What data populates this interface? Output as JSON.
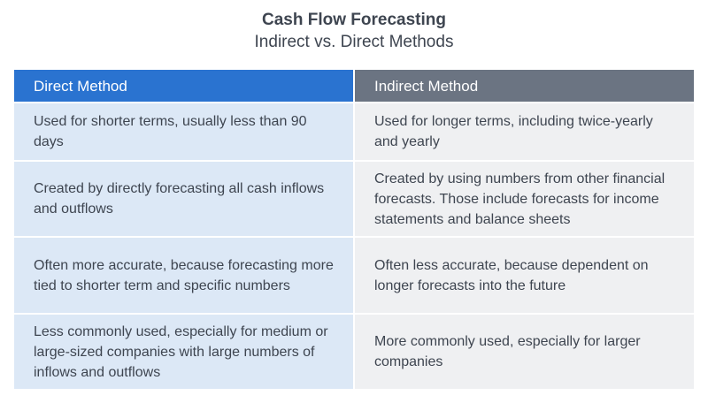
{
  "title": "Cash Flow Forecasting",
  "subtitle": "Indirect vs. Direct Methods",
  "headers": [
    "Direct Method",
    "Indirect Method"
  ],
  "rows": [
    [
      "Used for shorter terms, usually less than 90 days",
      "Used for longer terms, including twice-yearly and yearly"
    ],
    [
      "Created by directly forecasting all cash inflows and outflows",
      "Created by using numbers from other financial forecasts. Those include forecasts for income statements and balance sheets"
    ],
    [
      "Often more accurate, because forecasting more tied to shorter term and specific numbers",
      "Often less accurate, because dependent on longer forecasts into the future"
    ],
    [
      "Less commonly used, especially for medium or large-sized companies with large numbers of inflows and outflows",
      "More commonly used, especially for larger companies"
    ]
  ],
  "colors": {
    "direct_header": "#2a73d0",
    "indirect_header": "#6b7482",
    "direct_cell": "#dce8f6",
    "indirect_cell": "#eff0f2"
  }
}
